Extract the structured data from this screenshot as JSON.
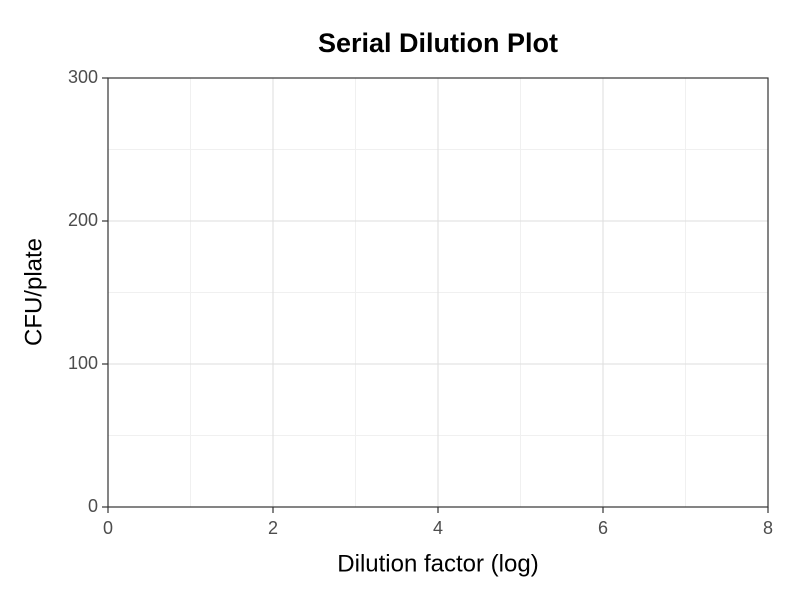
{
  "chart_data": {
    "type": "scatter",
    "title": "Serial Dilution Plot",
    "x_label": "Dilution factor (log)",
    "y_label": "CFU/plate",
    "xlim": [
      0,
      8
    ],
    "ylim": [
      0,
      300
    ],
    "xticks": [
      0,
      2,
      4,
      6,
      8
    ],
    "yticks": [
      0,
      100,
      200,
      300
    ],
    "grid": true,
    "minor_grid": true
  }
}
